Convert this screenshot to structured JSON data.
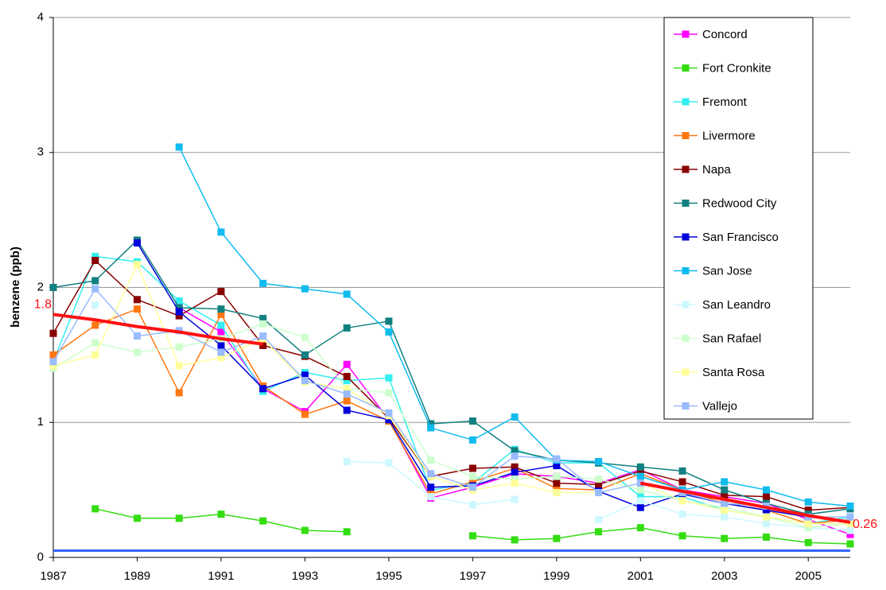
{
  "chart_data": {
    "type": "line",
    "y_label": "benzene (ppb)",
    "x": [
      1987,
      1988,
      1989,
      1990,
      1991,
      1992,
      1993,
      1994,
      1995,
      1996,
      1997,
      1998,
      1999,
      2000,
      2001,
      2002,
      2003,
      2004,
      2005,
      2006
    ],
    "xlim": [
      1987,
      2006
    ],
    "xticks": [
      1987,
      1989,
      1991,
      1993,
      1995,
      1997,
      1999,
      2001,
      2003,
      2005
    ],
    "ylim": [
      0,
      4
    ],
    "yticks": [
      0,
      1,
      2,
      3,
      4
    ],
    "grid": true,
    "legend": "upper right",
    "series": [
      {
        "name": "Concord",
        "color": "#ff00ff",
        "values": [
          null,
          null,
          null,
          1.85,
          1.67,
          1.25,
          1.08,
          1.43,
          1.02,
          0.44,
          0.52,
          0.62,
          0.6,
          0.55,
          0.65,
          0.5,
          0.45,
          0.4,
          0.28,
          0.17
        ]
      },
      {
        "name": "Fort Cronkite",
        "color": "#33dd11",
        "values": [
          null,
          0.36,
          0.29,
          0.29,
          0.32,
          0.27,
          0.2,
          0.19,
          null,
          null,
          0.16,
          0.13,
          0.14,
          0.19,
          0.22,
          0.16,
          0.14,
          0.15,
          0.11,
          0.1
        ]
      },
      {
        "name": "Fremont",
        "color": "#33eeee",
        "values": [
          1.45,
          2.23,
          2.19,
          1.9,
          1.72,
          1.23,
          1.37,
          1.31,
          1.33,
          0.5,
          0.55,
          0.8,
          0.7,
          0.7,
          0.45,
          0.45,
          0.35,
          0.3,
          0.25,
          0.3
        ]
      },
      {
        "name": "Livermore",
        "color": "#ff7711",
        "values": [
          1.5,
          1.72,
          1.84,
          1.22,
          1.8,
          1.27,
          1.06,
          1.16,
          1.01,
          0.47,
          0.56,
          0.66,
          0.51,
          0.5,
          0.62,
          0.5,
          0.4,
          0.35,
          0.25,
          0.28
        ]
      },
      {
        "name": "Napa",
        "color": "#880000",
        "values": [
          1.66,
          2.2,
          1.91,
          1.79,
          1.97,
          1.57,
          1.49,
          1.34,
          1.03,
          0.6,
          0.66,
          0.67,
          0.55,
          0.54,
          0.64,
          0.56,
          0.46,
          0.45,
          0.35,
          0.37
        ]
      },
      {
        "name": "Redwood City",
        "color": "#118080",
        "values": [
          2.0,
          2.05,
          2.35,
          1.85,
          1.84,
          1.77,
          1.5,
          1.7,
          1.75,
          0.99,
          1.01,
          0.79,
          0.72,
          0.7,
          0.67,
          0.64,
          0.5,
          0.4,
          0.32,
          0.36
        ]
      },
      {
        "name": "San Francisco",
        "color": "#0000dd",
        "values": [
          null,
          null,
          2.33,
          1.82,
          1.57,
          1.25,
          1.35,
          1.09,
          1.02,
          0.52,
          0.53,
          0.63,
          0.68,
          0.49,
          0.37,
          0.47,
          0.4,
          0.35,
          0.3,
          0.27
        ]
      },
      {
        "name": "San Jose",
        "color": "#11bbee",
        "values": [
          null,
          null,
          null,
          3.04,
          2.41,
          2.03,
          1.99,
          1.95,
          1.67,
          0.96,
          0.87,
          1.04,
          0.72,
          0.71,
          0.6,
          0.5,
          0.56,
          0.5,
          0.41,
          0.38
        ]
      },
      {
        "name": "San Leandro",
        "color": "#ccf8ff",
        "values": [
          null,
          1.87,
          null,
          null,
          null,
          null,
          null,
          0.71,
          0.7,
          0.45,
          0.39,
          0.43,
          null,
          0.28,
          0.42,
          0.32,
          0.3,
          0.25,
          0.22,
          0.2
        ]
      },
      {
        "name": "San Rafael",
        "color": "#ccffcc",
        "values": [
          1.4,
          1.59,
          1.52,
          1.56,
          1.62,
          1.73,
          1.63,
          1.25,
          1.22,
          0.72,
          0.6,
          0.58,
          0.6,
          0.58,
          0.5,
          0.42,
          0.37,
          0.3,
          0.22,
          0.25
        ]
      },
      {
        "name": "Santa Rosa",
        "color": "#ffff99",
        "values": [
          1.42,
          1.5,
          2.17,
          1.42,
          1.48,
          1.62,
          1.3,
          1.25,
          1.05,
          0.6,
          0.5,
          0.55,
          0.48,
          0.48,
          0.55,
          0.42,
          0.35,
          0.3,
          0.25,
          0.25
        ]
      },
      {
        "name": "Vallejo",
        "color": "#99bbff",
        "values": [
          1.45,
          1.99,
          1.64,
          1.68,
          1.52,
          1.64,
          1.31,
          1.21,
          1.07,
          0.62,
          0.52,
          0.75,
          0.73,
          0.48,
          0.55,
          0.48,
          0.4,
          0.38,
          0.3,
          0.3
        ]
      }
    ],
    "trend": {
      "color": "#ff1111",
      "values": [
        1.8,
        1.76,
        1.71,
        1.67,
        1.62,
        1.58,
        null,
        null,
        null,
        null,
        null,
        null,
        null,
        null,
        0.55,
        0.49,
        0.43,
        0.37,
        0.31,
        0.26
      ]
    },
    "reference_line": {
      "value": 0.05,
      "color": "#3366ff"
    }
  }
}
